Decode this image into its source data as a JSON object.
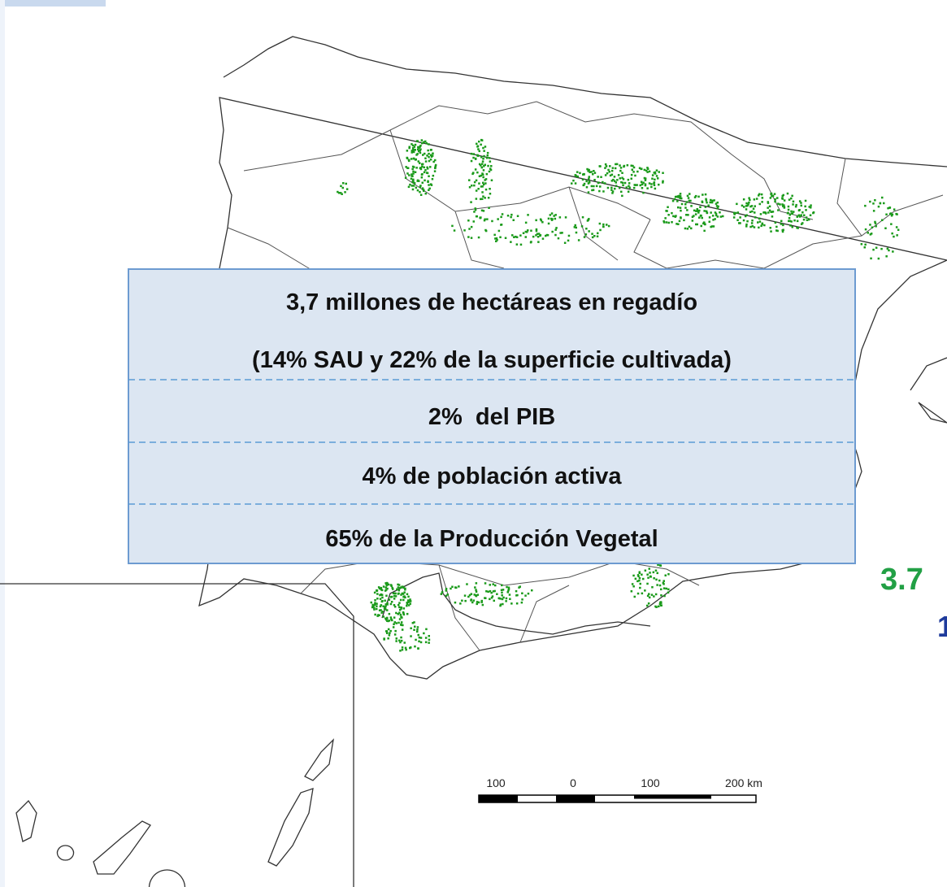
{
  "overlay": {
    "rows": [
      [
        "3,7 millones de hectáreas en regadío",
        "(14% SAU y 22% de la superficie cultivada)"
      ],
      [
        "2%  del PIB"
      ],
      [
        "4% de población activa"
      ],
      [
        "65% de la Producción Vegetal"
      ]
    ]
  },
  "side_text": [
    "3.7",
    "1"
  ],
  "scale_bar": {
    "labels": [
      "100",
      "0",
      "100",
      "200 km"
    ]
  }
}
